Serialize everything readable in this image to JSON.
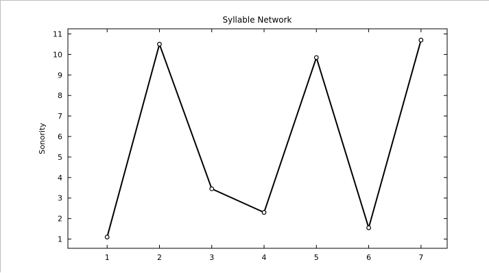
{
  "chart_data": {
    "type": "line",
    "title": "Syllable Network",
    "xlabel": "",
    "ylabel": "Sonority",
    "x": [
      1,
      2,
      3,
      4,
      5,
      6,
      7
    ],
    "series": [
      {
        "values": [
          1.1,
          10.5,
          3.45,
          2.3,
          9.85,
          1.55,
          10.7
        ]
      }
    ],
    "xlim": [
      0.25,
      7.5
    ],
    "ylim": [
      0.55,
      11.25
    ],
    "xticks": [
      "1",
      "2",
      "3",
      "4",
      "5",
      "6",
      "7"
    ],
    "yticks": [
      "1",
      "2",
      "3",
      "4",
      "5",
      "6",
      "7",
      "8",
      "9",
      "10",
      "11"
    ],
    "grid": false,
    "marker": "circle",
    "line_color": "#000000"
  }
}
